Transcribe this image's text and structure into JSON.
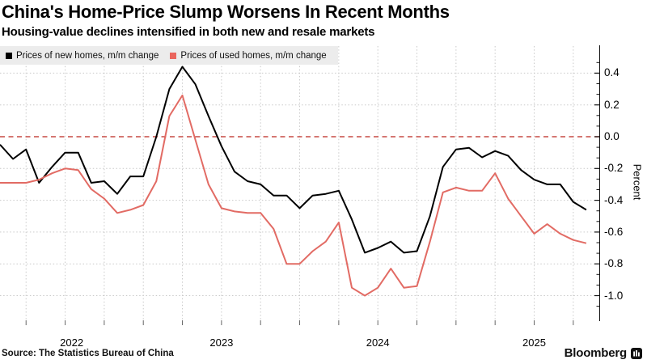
{
  "header": {
    "title": "China's Home-Price Slump Worsens In Recent Months",
    "subtitle": "Housing-value declines intensified in both new and resale markets"
  },
  "legend": [
    {
      "label": "Prices of new homes, m/m change",
      "color": "#000000"
    },
    {
      "label": "Prices of used homes, m/m change",
      "color": "#ea655d"
    }
  ],
  "source_note": "Source: The Statistics Bureau of China",
  "brand": "Bloomberg",
  "colors": {
    "new_homes_line": "#000000",
    "used_homes_line": "#e26b64",
    "zero_line": "#c74a44",
    "grid": "#c9c9c9",
    "legend_bg": "#ececec"
  },
  "chart_data": {
    "type": "line",
    "title": "China's Home-Price Slump Worsens In Recent Months",
    "xlabel": "",
    "ylabel": "Percent",
    "ylim": [
      -1.07,
      0.47
    ],
    "y_ticks": [
      0.4,
      0.2,
      0.0,
      -0.2,
      -0.4,
      -0.6,
      -0.8,
      -1.0
    ],
    "x_year_labels": [
      "2022",
      "2023",
      "2024",
      "2025"
    ],
    "grid": "dotted, quarterly vertical + 0.2-step horizontal",
    "legend_position": "top-left",
    "zero_line": {
      "value": 0.0,
      "style": "dashed",
      "color": "#c74a44"
    },
    "x": [
      "2022-01",
      "2022-02",
      "2022-03",
      "2022-04",
      "2022-05",
      "2022-06",
      "2022-07",
      "2022-08",
      "2022-09",
      "2022-10",
      "2022-11",
      "2022-12",
      "2023-01",
      "2023-02",
      "2023-03",
      "2023-04",
      "2023-05",
      "2023-06",
      "2023-07",
      "2023-08",
      "2023-09",
      "2023-10",
      "2023-11",
      "2023-12",
      "2024-01",
      "2024-02",
      "2024-03",
      "2024-04",
      "2024-05",
      "2024-06",
      "2024-07",
      "2024-08",
      "2024-09",
      "2024-10",
      "2024-11",
      "2024-12",
      "2025-01",
      "2025-02",
      "2025-03",
      "2025-04",
      "2025-05",
      "2025-06",
      "2025-07",
      "2025-08",
      "2025-09",
      "2025-10"
    ],
    "series": [
      {
        "id": "new-homes",
        "name": "Prices of new homes, m/m change",
        "color": "#000000",
        "values": [
          -0.05,
          -0.14,
          -0.08,
          -0.29,
          -0.19,
          -0.1,
          -0.1,
          -0.29,
          -0.28,
          -0.36,
          -0.25,
          -0.25,
          0.0,
          0.3,
          0.44,
          0.33,
          0.13,
          -0.06,
          -0.22,
          -0.28,
          -0.3,
          -0.37,
          -0.37,
          -0.45,
          -0.37,
          -0.36,
          -0.34,
          -0.52,
          -0.73,
          -0.7,
          -0.66,
          -0.73,
          -0.72,
          -0.5,
          -0.19,
          -0.08,
          -0.07,
          -0.13,
          -0.09,
          -0.12,
          -0.21,
          -0.27,
          -0.3,
          -0.3,
          -0.41,
          -0.46
        ]
      },
      {
        "id": "used-homes",
        "name": "Prices of used homes, m/m change",
        "color": "#e26b64",
        "values": [
          -0.29,
          -0.29,
          -0.29,
          -0.27,
          -0.23,
          -0.2,
          -0.21,
          -0.33,
          -0.39,
          -0.48,
          -0.46,
          -0.43,
          -0.28,
          0.13,
          0.26,
          -0.02,
          -0.3,
          -0.45,
          -0.47,
          -0.48,
          -0.48,
          -0.58,
          -0.8,
          -0.8,
          -0.72,
          -0.66,
          -0.54,
          -0.95,
          -1.0,
          -0.95,
          -0.83,
          -0.95,
          -0.94,
          -0.66,
          -0.35,
          -0.32,
          -0.34,
          -0.34,
          -0.23,
          -0.39,
          -0.5,
          -0.61,
          -0.55,
          -0.61,
          -0.65,
          -0.67
        ]
      }
    ]
  }
}
